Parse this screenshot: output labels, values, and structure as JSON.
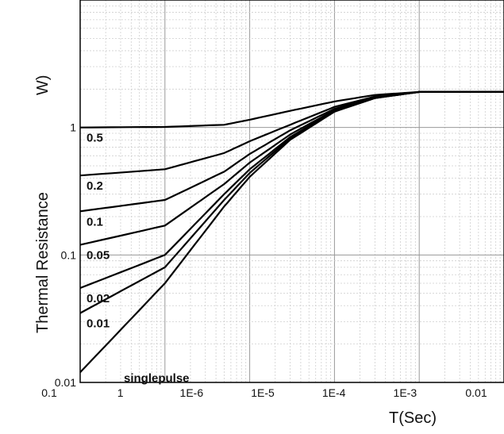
{
  "chart_data": {
    "type": "line",
    "title": "",
    "xlabel": "T(Sec)",
    "ylabel": "Thermal Resistance",
    "ylabel_unit_fragment": "W)",
    "x_scale": "log",
    "y_scale": "log",
    "xlim": [
      1e-07,
      0.01
    ],
    "ylim": [
      0.01,
      10
    ],
    "grid": true,
    "x_tick_labels": [
      "0.1",
      "1",
      "1E-6",
      "1E-5",
      "1E-4",
      "1E-3",
      "0.01"
    ],
    "y_tick_labels": [
      "1",
      "0.1",
      "0.01"
    ],
    "series": [
      {
        "name": "0.5",
        "points": [
          [
            1e-07,
            1.0
          ],
          [
            1e-06,
            1.01
          ],
          [
            5e-06,
            1.05
          ],
          [
            1e-05,
            1.15
          ],
          [
            3e-05,
            1.35
          ],
          [
            0.0001,
            1.6
          ],
          [
            0.0003,
            1.8
          ],
          [
            0.001,
            1.9
          ],
          [
            0.01,
            1.9
          ]
        ]
      },
      {
        "name": "0.2",
        "points": [
          [
            1e-07,
            0.42
          ],
          [
            1e-06,
            0.47
          ],
          [
            5e-06,
            0.63
          ],
          [
            1e-05,
            0.78
          ],
          [
            3e-05,
            1.05
          ],
          [
            0.0001,
            1.45
          ],
          [
            0.0003,
            1.75
          ],
          [
            0.001,
            1.9
          ],
          [
            0.01,
            1.9
          ]
        ]
      },
      {
        "name": "0.1",
        "points": [
          [
            1e-07,
            0.22
          ],
          [
            1e-06,
            0.27
          ],
          [
            5e-06,
            0.45
          ],
          [
            1e-05,
            0.62
          ],
          [
            3e-05,
            0.95
          ],
          [
            0.0001,
            1.4
          ],
          [
            0.0003,
            1.73
          ],
          [
            0.001,
            1.9
          ],
          [
            0.01,
            1.9
          ]
        ]
      },
      {
        "name": "0.05",
        "points": [
          [
            1e-07,
            0.12
          ],
          [
            1e-06,
            0.17
          ],
          [
            5e-06,
            0.36
          ],
          [
            1e-05,
            0.53
          ],
          [
            3e-05,
            0.88
          ],
          [
            0.0001,
            1.37
          ],
          [
            0.0003,
            1.72
          ],
          [
            0.001,
            1.9
          ],
          [
            0.01,
            1.9
          ]
        ]
      },
      {
        "name": "0.02",
        "points": [
          [
            1e-07,
            0.055
          ],
          [
            1e-06,
            0.1
          ],
          [
            5e-06,
            0.3
          ],
          [
            1e-05,
            0.47
          ],
          [
            3e-05,
            0.84
          ],
          [
            0.0001,
            1.35
          ],
          [
            0.0003,
            1.71
          ],
          [
            0.001,
            1.9
          ],
          [
            0.01,
            1.9
          ]
        ]
      },
      {
        "name": "0.01",
        "points": [
          [
            1e-07,
            0.035
          ],
          [
            1e-06,
            0.08
          ],
          [
            5e-06,
            0.27
          ],
          [
            1e-05,
            0.44
          ],
          [
            3e-05,
            0.82
          ],
          [
            0.0001,
            1.34
          ],
          [
            0.0003,
            1.7
          ],
          [
            0.001,
            1.9
          ],
          [
            0.01,
            1.9
          ]
        ]
      },
      {
        "name": "singlepulse",
        "points": [
          [
            1e-07,
            0.012
          ],
          [
            1e-06,
            0.06
          ],
          [
            5e-06,
            0.24
          ],
          [
            1e-05,
            0.41
          ],
          [
            3e-05,
            0.8
          ],
          [
            0.0001,
            1.33
          ],
          [
            0.0003,
            1.7
          ],
          [
            0.001,
            1.9
          ],
          [
            0.01,
            1.9
          ]
        ]
      }
    ]
  }
}
